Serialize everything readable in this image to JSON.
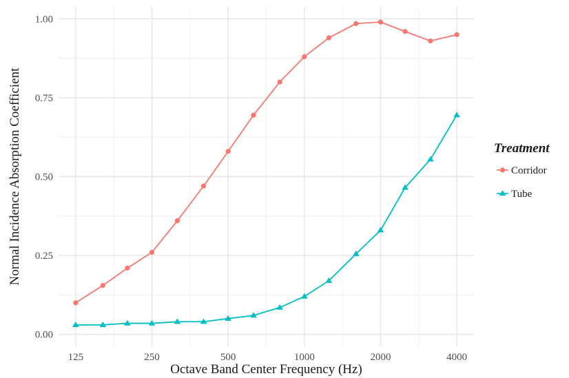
{
  "chart_data": {
    "type": "line",
    "xlabel": "Octave Band Center Frequency (Hz)",
    "ylabel": "Normal Incidence Absorption Coefficient",
    "x_scale": "log2",
    "x": [
      125,
      160,
      200,
      250,
      315,
      400,
      500,
      630,
      800,
      1000,
      1250,
      1600,
      2000,
      2500,
      3150,
      4000
    ],
    "x_ticks": [
      125,
      250,
      500,
      1000,
      2000,
      4000
    ],
    "x_tick_labels": [
      "125",
      "250",
      "500",
      "1000",
      "2000",
      "4000"
    ],
    "ylim": [
      0,
      1.0
    ],
    "y_ticks": [
      0,
      0.25,
      0.5,
      0.75,
      1.0
    ],
    "y_tick_labels": [
      "0.00",
      "0.25",
      "0.50",
      "0.75",
      "1.00"
    ],
    "grid": true,
    "legend": {
      "title": "Treatment",
      "position": "right"
    },
    "series": [
      {
        "name": "Corridor",
        "color": "#F8766D",
        "marker": "circle",
        "values": [
          0.1,
          0.155,
          0.21,
          0.26,
          0.36,
          0.47,
          0.58,
          0.695,
          0.8,
          0.88,
          0.94,
          0.985,
          0.99,
          0.96,
          0.93,
          0.95
        ]
      },
      {
        "name": "Tube",
        "color": "#00BFC4",
        "marker": "triangle",
        "values": [
          0.03,
          0.03,
          0.035,
          0.035,
          0.04,
          0.04,
          0.05,
          0.06,
          0.085,
          0.12,
          0.17,
          0.255,
          0.33,
          0.465,
          0.555,
          0.695
        ]
      }
    ]
  }
}
